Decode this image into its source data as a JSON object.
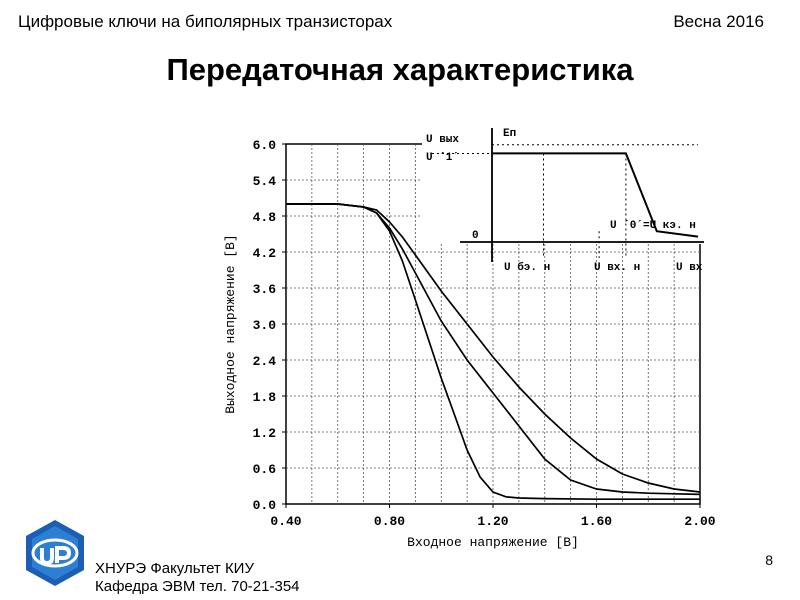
{
  "header": {
    "topic": "Цифровые ключи на биполярных транзисторах",
    "season": "Весна 2016"
  },
  "slide": {
    "title": "Передаточная характеристика",
    "page_number": "8"
  },
  "footer": {
    "line1": "ХНУРЭ Факультет КИУ",
    "line2": "Кафедра ЭВМ   тел. 70-21-354"
  },
  "chart_data": [
    {
      "type": "line",
      "xlabel": "Входное напряжение [B]",
      "ylabel": "Выходное напряжение [B]",
      "xlim": [
        0.4,
        2.0
      ],
      "ylim": [
        0.0,
        6.0
      ],
      "xticks": [
        "0.40",
        "0.80",
        "1.20",
        "1.60",
        "2.00"
      ],
      "yticks": [
        "0.0",
        "0.6",
        "1.2",
        "1.8",
        "2.4",
        "3.0",
        "3.6",
        "4.2",
        "4.8",
        "5.4",
        "6.0"
      ],
      "grid": true,
      "series": [
        {
          "x": [
            0.4,
            0.6,
            0.7,
            0.75,
            0.8,
            0.85,
            0.9,
            0.95,
            1.0,
            1.05,
            1.1,
            1.15,
            1.2,
            1.25,
            1.3,
            1.4,
            1.6,
            2.0
          ],
          "y": [
            5.0,
            5.0,
            4.95,
            4.85,
            4.55,
            4.05,
            3.4,
            2.75,
            2.1,
            1.5,
            0.9,
            0.45,
            0.2,
            0.12,
            0.1,
            0.09,
            0.08,
            0.08
          ]
        },
        {
          "x": [
            0.4,
            0.6,
            0.7,
            0.75,
            0.8,
            0.85,
            0.9,
            0.95,
            1.0,
            1.1,
            1.2,
            1.3,
            1.4,
            1.5,
            1.6,
            1.7,
            1.8,
            1.9,
            2.0
          ],
          "y": [
            5.0,
            5.0,
            4.95,
            4.85,
            4.6,
            4.25,
            3.85,
            3.45,
            3.05,
            2.4,
            1.85,
            1.3,
            0.75,
            0.4,
            0.25,
            0.2,
            0.18,
            0.17,
            0.16
          ]
        },
        {
          "x": [
            0.4,
            0.6,
            0.7,
            0.75,
            0.8,
            0.85,
            0.9,
            0.95,
            1.0,
            1.1,
            1.2,
            1.3,
            1.4,
            1.5,
            1.6,
            1.7,
            1.8,
            1.9,
            2.0
          ],
          "y": [
            5.0,
            5.0,
            4.95,
            4.9,
            4.7,
            4.45,
            4.15,
            3.85,
            3.55,
            3.0,
            2.45,
            1.95,
            1.5,
            1.1,
            0.75,
            0.5,
            0.35,
            0.25,
            0.2
          ]
        }
      ]
    },
    {
      "type": "line",
      "inset": true,
      "labels": {
        "y_out": "U вых",
        "u1": "U ´1´",
        "ep": "Eп",
        "origin": "0",
        "u0_eq": "U ´0´=U кэ. н",
        "x_ube": "U бэ. н",
        "x_uvxn": "U вх. н",
        "x_uvx": "U вх"
      },
      "series": [
        {
          "x": [
            0.0,
            0.5,
            0.65,
            0.8,
            1.0
          ],
          "y": [
            0.82,
            0.82,
            0.82,
            0.1,
            0.05
          ]
        }
      ]
    }
  ]
}
